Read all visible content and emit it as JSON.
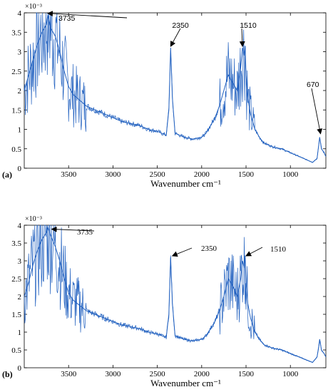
{
  "chart_data": [
    {
      "type": "line",
      "panel_label": "(a)",
      "xlabel": "Wavenumber cm⁻¹",
      "ylabel": "",
      "y_scale_label": "×10⁻³",
      "x_reversed": true,
      "xlim": [
        4000,
        600
      ],
      "ylim": [
        0,
        4
      ],
      "xticks": [
        3500,
        3000,
        2500,
        2000,
        1500,
        1000
      ],
      "yticks": [
        0,
        0.5,
        1,
        1.5,
        2,
        2.5,
        3,
        3.5,
        4
      ],
      "line_color": "#1f5fbf",
      "series": [
        {
          "x": [
            4000,
            3950,
            3900,
            3850,
            3800,
            3750,
            3735,
            3700,
            3650,
            3600,
            3550,
            3500,
            3450,
            3400,
            3300,
            3200,
            3100,
            3000,
            2900,
            2800,
            2700,
            2600,
            2500,
            2450,
            2400,
            2370,
            2350,
            2330,
            2300,
            2250,
            2200,
            2100,
            2000,
            1950,
            1900,
            1850,
            1800,
            1750,
            1700,
            1650,
            1600,
            1560,
            1540,
            1520,
            1510,
            1500,
            1480,
            1450,
            1400,
            1350,
            1300,
            1250,
            1200,
            1100,
            1000,
            900,
            800,
            750,
            700,
            680,
            670,
            650,
            620,
            600
          ],
          "values": [
            2.0,
            2.4,
            2.8,
            3.2,
            3.5,
            3.7,
            3.95,
            3.6,
            3.4,
            3.0,
            2.5,
            2.1,
            1.9,
            1.8,
            1.6,
            1.5,
            1.4,
            1.3,
            1.2,
            1.15,
            1.1,
            1.0,
            0.95,
            0.9,
            0.85,
            1.5,
            3.1,
            1.8,
            0.9,
            0.85,
            0.8,
            0.75,
            0.8,
            0.9,
            1.1,
            1.3,
            1.6,
            2.0,
            2.4,
            2.2,
            2.0,
            2.6,
            3.1,
            2.9,
            3.15,
            2.4,
            1.8,
            1.4,
            1.0,
            0.8,
            0.65,
            0.6,
            0.55,
            0.5,
            0.4,
            0.3,
            0.2,
            0.15,
            0.25,
            0.6,
            0.8,
            0.5,
            0.4,
            0.3
          ]
        }
      ],
      "annotations": [
        {
          "text": "3735",
          "x": 3735,
          "y": 3.95
        },
        {
          "text": "2350",
          "x": 2350,
          "y": 3.1
        },
        {
          "text": "1510",
          "x": 1540,
          "y": 3.1
        },
        {
          "text": "670",
          "x": 660,
          "y": 0.85
        }
      ]
    },
    {
      "type": "line",
      "panel_label": "(b)",
      "xlabel": "Wavenumber cm⁻¹",
      "ylabel": "",
      "y_scale_label": "×10⁻³",
      "x_reversed": true,
      "xlim": [
        4000,
        600
      ],
      "ylim": [
        0,
        4
      ],
      "xticks": [
        3500,
        3000,
        2500,
        2000,
        1500,
        1000
      ],
      "yticks": [
        0,
        0.5,
        1,
        1.5,
        2,
        2.5,
        3,
        3.5,
        4
      ],
      "line_color": "#1f5fbf",
      "series": [
        {
          "x": [
            4000,
            3950,
            3900,
            3850,
            3800,
            3750,
            3735,
            3700,
            3650,
            3600,
            3550,
            3500,
            3450,
            3400,
            3300,
            3200,
            3100,
            3000,
            2900,
            2800,
            2700,
            2600,
            2500,
            2450,
            2400,
            2370,
            2350,
            2330,
            2300,
            2250,
            2200,
            2100,
            2000,
            1950,
            1900,
            1850,
            1800,
            1750,
            1700,
            1650,
            1600,
            1560,
            1540,
            1520,
            1510,
            1500,
            1480,
            1450,
            1400,
            1350,
            1300,
            1250,
            1200,
            1100,
            1000,
            900,
            800,
            750,
            700,
            680,
            670,
            650,
            620,
            600
          ],
          "values": [
            2.0,
            2.4,
            2.9,
            3.3,
            3.6,
            3.8,
            3.95,
            3.7,
            3.4,
            3.0,
            2.5,
            2.1,
            1.9,
            1.8,
            1.6,
            1.5,
            1.4,
            1.3,
            1.2,
            1.15,
            1.1,
            1.0,
            0.95,
            0.9,
            0.85,
            1.5,
            3.1,
            1.8,
            0.9,
            0.85,
            0.8,
            0.75,
            0.8,
            0.9,
            1.1,
            1.3,
            1.6,
            2.0,
            2.5,
            2.3,
            2.0,
            2.5,
            3.0,
            2.8,
            3.15,
            2.4,
            1.8,
            1.4,
            1.0,
            0.8,
            0.65,
            0.6,
            0.55,
            0.5,
            0.4,
            0.3,
            0.2,
            0.15,
            0.3,
            0.6,
            0.8,
            0.5,
            0.4,
            0.3
          ]
        }
      ],
      "annotations": [
        {
          "text": "3735",
          "x": 3690,
          "y": 3.85
        },
        {
          "text": "2350",
          "x": 2330,
          "y": 3.1
        },
        {
          "text": "1510",
          "x": 1500,
          "y": 3.1
        }
      ]
    }
  ]
}
